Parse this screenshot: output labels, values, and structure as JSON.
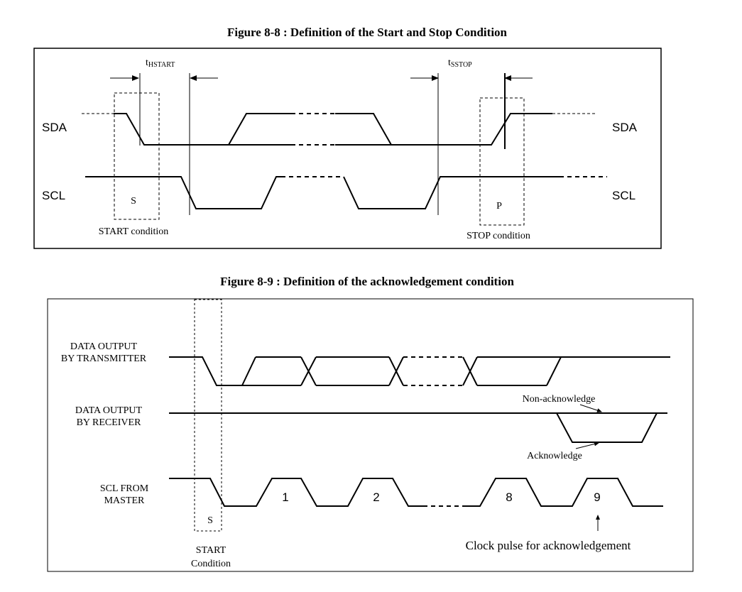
{
  "figure1": {
    "title": "Figure 8-8 : Definition of the Start and Stop Condition",
    "sda_left": "SDA",
    "sda_right": "SDA",
    "scl_left": "SCL",
    "scl_right": "SCL",
    "thstart_main": "t",
    "thstart_sub": "HSTART",
    "tsstop_main": "t",
    "tsstop_sub": "SSTOP",
    "s_box": "S",
    "p_box": "P",
    "start_label": "START condition",
    "stop_label": "STOP condition"
  },
  "figure2": {
    "title": "Figure 8-9 : Definition of the acknowledgement condition",
    "tx_line1": "DATA OUTPUT",
    "tx_line2": "BY TRANSMITTER",
    "rx_line1": "DATA OUTPUT",
    "rx_line2": "BY RECEIVER",
    "scl_line1": "SCL FROM",
    "scl_line2": "MASTER",
    "non_ack": "Non-acknowledge",
    "ack": "Acknowledge",
    "pulse1": "1",
    "pulse2": "2",
    "pulse8": "8",
    "pulse9": "9",
    "s_box": "S",
    "start_line1": "START",
    "start_line2": "Condition",
    "clock_label": "Clock pulse for acknowledgement"
  }
}
